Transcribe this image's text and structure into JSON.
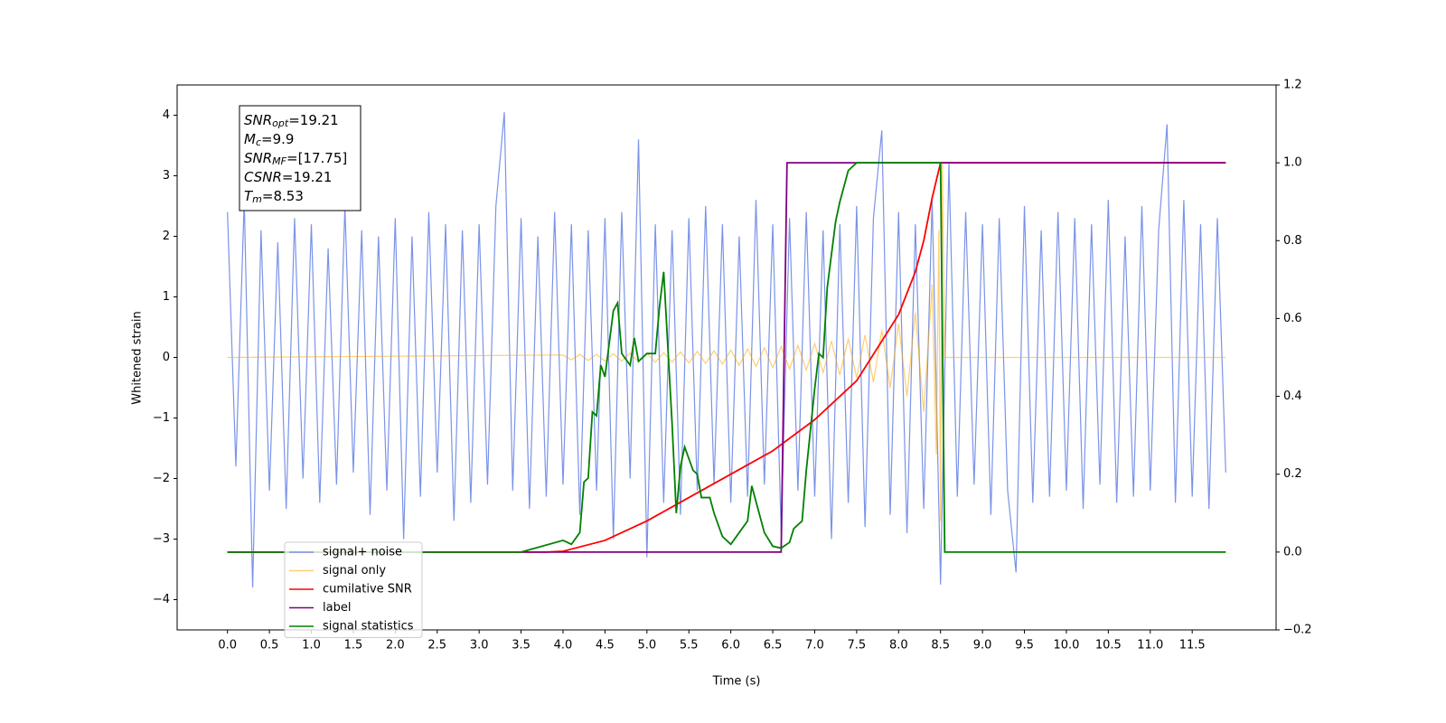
{
  "chart_data": {
    "type": "line",
    "xlabel": "Time (s)",
    "ylabel": "Whitened strain",
    "xlim": [
      -0.6,
      12.5
    ],
    "ylim": [
      -4.5,
      4.5
    ],
    "y2lim": [
      -0.2,
      1.2
    ],
    "xticks": [
      {
        "value": 0,
        "label": "0.0"
      },
      0.5,
      {
        "value": 1,
        "label": "1.0"
      },
      1.5,
      {
        "value": 2,
        "label": "2.0"
      },
      2.5,
      {
        "value": 3,
        "label": "3.0"
      },
      3.5,
      {
        "value": 4,
        "label": "4.0"
      },
      4.5,
      {
        "value": 5,
        "label": "5.0"
      },
      5.5,
      {
        "value": 6,
        "label": "6.0"
      },
      6.5,
      {
        "value": 7,
        "label": "7.0"
      },
      7.5,
      {
        "value": 8,
        "label": "8.0"
      },
      8.5,
      {
        "value": 9,
        "label": "9.0"
      },
      9.5,
      {
        "value": 10,
        "label": "10.0"
      },
      10.5,
      {
        "value": 11,
        "label": "11.0"
      },
      11.5
    ],
    "yticks": [
      {
        "value": -4,
        "label": "−4"
      },
      {
        "value": -3,
        "label": "−3"
      },
      {
        "value": -2,
        "label": "−2"
      },
      {
        "value": -1,
        "label": "−1"
      },
      0,
      1,
      2,
      3,
      4
    ],
    "y2ticks": [
      {
        "value": -0.2,
        "label": "−0.2"
      },
      {
        "value": 0,
        "label": "0.0"
      },
      0.2,
      0.4,
      0.6,
      0.8,
      {
        "value": 1,
        "label": "1.0"
      },
      1.2
    ],
    "legend": "lower left",
    "annotation": [
      {
        "main": "SNR",
        "sub": "opt",
        "rest": "=19.21"
      },
      {
        "main": "M",
        "sub": "c",
        "rest": "=9.9"
      },
      {
        "main": "SNR",
        "sub": "MF",
        "rest": "=[17.75]"
      },
      {
        "main": "CSNR",
        "rest": "=19.21"
      },
      {
        "main": "T",
        "sub": "m",
        "rest": "=8.53"
      }
    ],
    "series": [
      {
        "name": "signal+ noise",
        "color": "#7a93e8",
        "axis": "y",
        "x": [
          0,
          0.1,
          0.2,
          0.3,
          0.4,
          0.5,
          0.6,
          0.7,
          0.8,
          0.9,
          1,
          1.1,
          1.2,
          1.3,
          1.4,
          1.5,
          1.6,
          1.7,
          1.8,
          1.9,
          2,
          2.1,
          2.2,
          2.3,
          2.4,
          2.5,
          2.6,
          2.7,
          2.8,
          2.9,
          3,
          3.1,
          3.2,
          3.3,
          3.4,
          3.5,
          3.6,
          3.7,
          3.8,
          3.9,
          4,
          4.1,
          4.2,
          4.3,
          4.4,
          4.5,
          4.6,
          4.7,
          4.8,
          4.9,
          5,
          5.1,
          5.2,
          5.3,
          5.4,
          5.5,
          5.6,
          5.7,
          5.8,
          5.9,
          6,
          6.1,
          6.2,
          6.3,
          6.4,
          6.5,
          6.6,
          6.7,
          6.8,
          6.9,
          7,
          7.1,
          7.2,
          7.3,
          7.4,
          7.5,
          7.6,
          7.7,
          7.8,
          7.9,
          8,
          8.1,
          8.2,
          8.3,
          8.4,
          8.5,
          8.6,
          8.7,
          8.8,
          8.9,
          9,
          9.1,
          9.2,
          9.3,
          9.4,
          9.5,
          9.6,
          9.7,
          9.8,
          9.9,
          10,
          10.1,
          10.2,
          10.3,
          10.4,
          10.5,
          10.6,
          10.7,
          10.8,
          10.9,
          11,
          11.1,
          11.2,
          11.3,
          11.4,
          11.5,
          11.6,
          11.7,
          11.8,
          11.9
        ],
        "values": [
          2.4,
          -1.8,
          2.6,
          -3.8,
          2.1,
          -2.2,
          1.9,
          -2.5,
          2.3,
          -2.0,
          2.2,
          -2.4,
          1.8,
          -2.1,
          2.5,
          -1.9,
          2.1,
          -2.6,
          2.0,
          -2.2,
          2.3,
          -3.0,
          2.0,
          -2.3,
          2.4,
          -1.9,
          2.2,
          -2.7,
          2.1,
          -2.4,
          2.2,
          -2.1,
          2.5,
          4.05,
          -2.2,
          2.3,
          -2.5,
          2.0,
          -2.3,
          2.4,
          -2.1,
          2.2,
          -2.6,
          2.1,
          -2.2,
          2.3,
          -3.0,
          2.4,
          -2.0,
          3.6,
          -3.3,
          2.2,
          -2.4,
          2.1,
          -2.6,
          2.3,
          -2.2,
          2.5,
          -2.1,
          2.2,
          -2.4,
          2.0,
          -2.3,
          2.6,
          -2.1,
          2.2,
          -2.9,
          2.3,
          -2.2,
          2.4,
          -2.3,
          2.1,
          -3.0,
          2.2,
          -2.4,
          2.5,
          -2.8,
          2.3,
          3.75,
          -2.6,
          2.4,
          -2.9,
          2.2,
          -2.5,
          2.6,
          -3.75,
          3.2,
          -2.3,
          2.4,
          -2.1,
          2.2,
          -2.6,
          2.3,
          -2.2,
          -3.55,
          2.5,
          -2.4,
          2.1,
          -2.3,
          2.4,
          -2.2,
          2.3,
          -2.5,
          2.2,
          -2.1,
          2.6,
          -2.4,
          2.0,
          -2.3,
          2.5,
          -2.2,
          2.1,
          3.85,
          -2.4,
          2.6,
          -2.3,
          2.2,
          -2.5,
          2.3,
          -1.9
        ]
      },
      {
        "name": "signal only",
        "color": "#ffa500",
        "axis": "y",
        "x": [
          0,
          4,
          4.1,
          4.2,
          4.3,
          4.4,
          4.5,
          4.6,
          4.7,
          4.8,
          4.9,
          5,
          5.1,
          5.2,
          5.3,
          5.4,
          5.5,
          5.6,
          5.7,
          5.8,
          5.9,
          6,
          6.1,
          6.2,
          6.3,
          6.4,
          6.5,
          6.6,
          6.7,
          6.8,
          6.9,
          7,
          7.1,
          7.2,
          7.3,
          7.4,
          7.5,
          7.6,
          7.7,
          7.8,
          7.9,
          8,
          8.1,
          8.2,
          8.3,
          8.4,
          8.45,
          8.48,
          8.5,
          8.52,
          8.55,
          11.9
        ],
        "values": [
          0,
          0.04,
          -0.04,
          0.05,
          -0.05,
          0.05,
          -0.06,
          0.06,
          -0.06,
          0.07,
          -0.07,
          0.07,
          -0.08,
          0.08,
          -0.08,
          0.09,
          -0.09,
          0.1,
          -0.1,
          0.11,
          -0.11,
          0.12,
          -0.13,
          0.14,
          -0.15,
          0.16,
          -0.17,
          0.18,
          -0.19,
          0.2,
          -0.21,
          0.23,
          -0.25,
          0.27,
          -0.29,
          0.31,
          -0.34,
          0.37,
          -0.41,
          0.45,
          -0.5,
          0.56,
          -0.64,
          0.74,
          -0.9,
          1.2,
          -1.6,
          2.1,
          -2.7,
          3.2,
          0,
          0
        ]
      },
      {
        "name": "cumilative SNR",
        "color": "#ff0000",
        "axis": "y2",
        "x": [
          0,
          3.8,
          4,
          4.5,
          5,
          5.5,
          6,
          6.5,
          7,
          7.5,
          8,
          8.2,
          8.3,
          8.4,
          8.5,
          11.9
        ],
        "values": [
          0,
          0,
          0.002,
          0.03,
          0.08,
          0.14,
          0.2,
          0.26,
          0.34,
          0.44,
          0.61,
          0.72,
          0.8,
          0.91,
          1,
          1
        ]
      },
      {
        "name": "label",
        "color": "#800080",
        "axis": "y2",
        "x": [
          0,
          6.6,
          6.67,
          11.9
        ],
        "values": [
          0,
          0,
          1,
          1
        ]
      },
      {
        "name": "signal statistics",
        "color": "#008000",
        "axis": "y2",
        "x": [
          0,
          3.5,
          4,
          4.1,
          4.2,
          4.25,
          4.3,
          4.35,
          4.4,
          4.45,
          4.5,
          4.6,
          4.65,
          4.7,
          4.8,
          4.85,
          4.9,
          5,
          5.1,
          5.15,
          5.2,
          5.3,
          5.35,
          5.4,
          5.45,
          5.55,
          5.6,
          5.65,
          5.75,
          5.8,
          5.9,
          6,
          6.1,
          6.2,
          6.25,
          6.3,
          6.4,
          6.5,
          6.6,
          6.7,
          6.75,
          6.85,
          6.9,
          7,
          7.05,
          7.1,
          7.15,
          7.25,
          7.3,
          7.4,
          7.5,
          8.5,
          8.55,
          11.9
        ],
        "values": [
          0,
          0,
          0.03,
          0.02,
          0.05,
          0.18,
          0.19,
          0.36,
          0.35,
          0.48,
          0.45,
          0.62,
          0.64,
          0.51,
          0.48,
          0.55,
          0.49,
          0.51,
          0.51,
          0.63,
          0.72,
          0.33,
          0.1,
          0.22,
          0.27,
          0.21,
          0.2,
          0.14,
          0.14,
          0.1,
          0.04,
          0.02,
          0.05,
          0.08,
          0.17,
          0.13,
          0.05,
          0.015,
          0.01,
          0.025,
          0.06,
          0.08,
          0.21,
          0.42,
          0.51,
          0.5,
          0.68,
          0.85,
          0.9,
          0.98,
          1,
          1,
          0,
          0
        ]
      }
    ]
  }
}
